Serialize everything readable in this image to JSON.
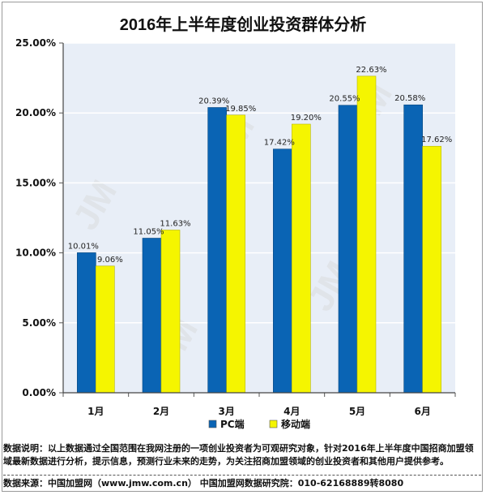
{
  "chart_data": {
    "type": "bar",
    "title": "2016年上半年度创业投资群体分析",
    "categories": [
      "1月",
      "2月",
      "3月",
      "4月",
      "5月",
      "6月"
    ],
    "series": [
      {
        "name": "PC端",
        "values": [
          10.01,
          11.05,
          20.39,
          17.42,
          20.55,
          20.58
        ],
        "color": "#0a64b4",
        "labels": [
          "10.01%",
          "11.05%",
          "20.39%",
          "17.42%",
          "20.55%",
          "20.58%"
        ]
      },
      {
        "name": "移动端",
        "values": [
          9.06,
          11.63,
          19.85,
          19.2,
          22.63,
          17.62
        ],
        "color": "#f5f500",
        "labels": [
          "9.06%",
          "11.63%",
          "19.85%",
          "19.20%",
          "22.63%",
          "17.62%"
        ]
      }
    ],
    "ylim": [
      0,
      25
    ],
    "yticks": [
      0,
      5,
      10,
      15,
      20,
      25
    ],
    "ytick_labels": [
      "0.00%",
      "5.00%",
      "10.00%",
      "15.00%",
      "20.00%",
      "25.00%"
    ],
    "grid": true,
    "legend_position": "bottom",
    "xlabel": "",
    "ylabel": "",
    "watermark": "JM 中国加盟网 www.jmw.com.cn"
  },
  "footer": {
    "notes": "数据说明：以上数据通过全国范围在我网注册的一项创业投资者为可观研究对象，针对2016年上半年度中国招商加盟领域最新数据进行分析，提示信息，预测行业未来的走势，为关注招商加盟领域的创业投资者和其他用户提供参考。",
    "source": "数据来源：中国加盟网（www.jmw.com.cn）  中国加盟网数据研究院：010-62168889转8080"
  },
  "colors": {
    "plot_bg": "#e8eef7",
    "grid": "#ffffff",
    "pc_bar": "#0a64b4",
    "mobile_bar": "#f5f500"
  }
}
